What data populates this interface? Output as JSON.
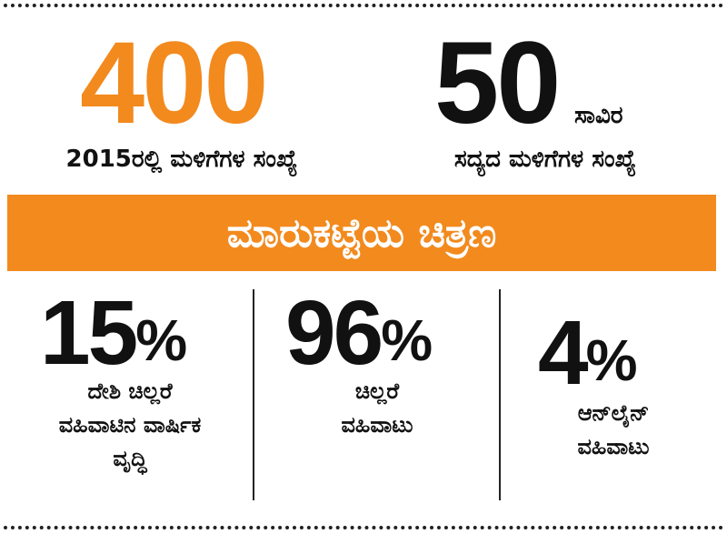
{
  "top": {
    "stat_left": {
      "value": "400",
      "caption": "2015ರಲ್ಲಿ ಮಳಿಗೆಗಳ ಸಂಖ್ಯೆ",
      "color": "#f28a1e"
    },
    "stat_right": {
      "value": "50",
      "unit": "ಸಾವಿರ",
      "caption": "ಸದ್ಯದ ಮಳಿಗೆಗಳ ಸಂಖ್ಯೆ",
      "color": "#111111"
    }
  },
  "banner": {
    "title": "ಮಾರುಕಟ್ಟೆಯ ಚಿತ್ರಣ",
    "color": "#f28a1e"
  },
  "stats": [
    {
      "value": "15",
      "sign": "%",
      "lines": [
        "ದೇಶಿ ಚಿಲ್ಲರೆ",
        "ವಹಿವಾಟಿನ ವಾರ್ಷಿಕ",
        "ವೃದ್ಧಿ"
      ]
    },
    {
      "value": "96",
      "sign": "%",
      "lines": [
        "ಚಿಲ್ಲರೆ",
        "ವಹಿವಾಟು"
      ]
    },
    {
      "value": "4",
      "sign": "%",
      "lines": [
        "ಆನ್‌ಲೈನ್",
        "ವಹಿವಾಟು"
      ]
    }
  ]
}
